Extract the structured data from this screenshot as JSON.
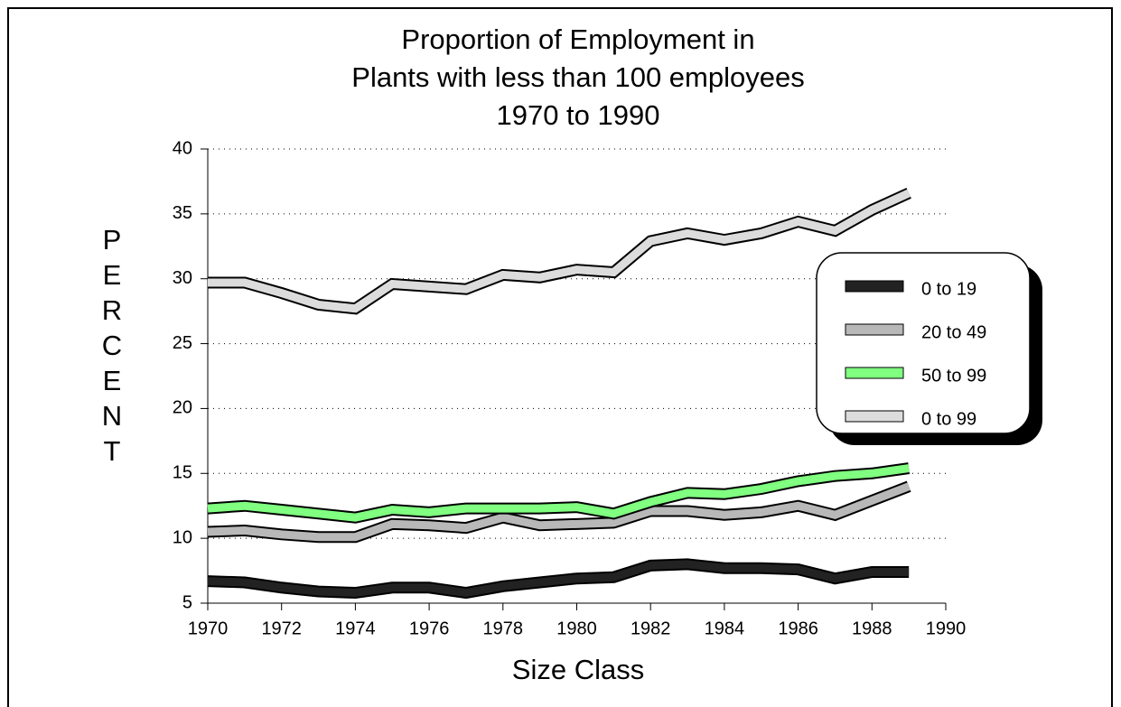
{
  "chart_data": {
    "type": "line",
    "title": [
      "Proportion of Employment in",
      "Plants with less than 100 employees",
      "1970 to 1990"
    ],
    "x_label": "Size Class",
    "y_label": "PERCENT",
    "x": [
      1970,
      1971,
      1972,
      1973,
      1974,
      1975,
      1976,
      1977,
      1978,
      1979,
      1980,
      1981,
      1982,
      1983,
      1984,
      1985,
      1986,
      1987,
      1988,
      1989
    ],
    "series": [
      {
        "name": "0 to 19",
        "color": "#222222",
        "values": [
          6.7,
          6.6,
          6.2,
          5.9,
          5.8,
          6.2,
          6.2,
          5.8,
          6.3,
          6.6,
          6.9,
          7.0,
          7.9,
          8.0,
          7.7,
          7.7,
          7.6,
          6.9,
          7.4,
          7.4
        ]
      },
      {
        "name": "20 to 49",
        "color": "#b8b8b8",
        "values": [
          10.5,
          10.6,
          10.3,
          10.1,
          10.1,
          11.1,
          11.0,
          10.8,
          11.6,
          11.0,
          11.1,
          11.2,
          12.1,
          12.1,
          11.8,
          12.0,
          12.5,
          11.8,
          12.9,
          14.0
        ]
      },
      {
        "name": "50 to 99",
        "color": "#80ff80",
        "values": [
          12.3,
          12.5,
          12.2,
          11.9,
          11.6,
          12.2,
          12.0,
          12.3,
          12.3,
          12.3,
          12.4,
          11.9,
          12.8,
          13.5,
          13.4,
          13.8,
          14.4,
          14.8,
          15.0,
          15.4
        ]
      },
      {
        "name": "0 to 99",
        "color": "#dcdcdc",
        "values": [
          29.7,
          29.7,
          28.9,
          28.0,
          27.7,
          29.6,
          29.4,
          29.2,
          30.3,
          30.1,
          30.7,
          30.5,
          32.9,
          33.5,
          33.0,
          33.5,
          34.4,
          33.7,
          35.3,
          36.6
        ]
      }
    ],
    "xlim": [
      1970,
      1990
    ],
    "xticks": [
      1970,
      1972,
      1974,
      1976,
      1978,
      1980,
      1982,
      1984,
      1986,
      1988,
      1990
    ],
    "ylim": [
      5,
      40
    ],
    "yticks": [
      5,
      10,
      15,
      20,
      25,
      30,
      35,
      40
    ],
    "grid": true,
    "legend": "right"
  }
}
